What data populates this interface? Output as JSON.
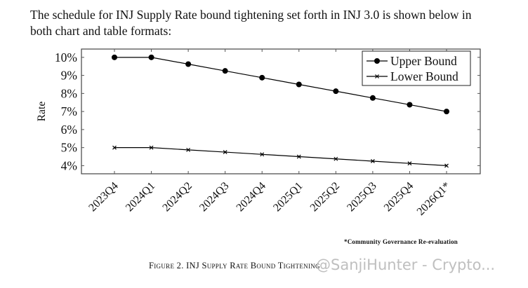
{
  "intro_text": "The schedule for INJ Supply Rate bound tightening set forth in INJ 3.0 is shown below in both chart and table formats:",
  "footnote": "*Community Governance Re-evaluation",
  "caption": "Figure 2. INJ Supply Rate Bound Tightening",
  "watermark": "@SanjiHunter - Crypto...",
  "chart_data": {
    "type": "line",
    "title": "",
    "xlabel": "",
    "ylabel": "Rate",
    "categories": [
      "2023Q4",
      "2024Q1",
      "2024Q2",
      "2024Q3",
      "2024Q4",
      "2025Q1",
      "2025Q2",
      "2025Q3",
      "2025Q4",
      "2026Q1*"
    ],
    "series": [
      {
        "name": "Upper Bound",
        "marker": "circle",
        "values": [
          10,
          10,
          9.625,
          9.25,
          8.875,
          8.5,
          8.125,
          7.75,
          7.375,
          7.0
        ]
      },
      {
        "name": "Lower Bound",
        "marker": "x",
        "values": [
          5,
          5,
          4.875,
          4.75,
          4.625,
          4.5,
          4.375,
          4.25,
          4.125,
          4.0
        ]
      }
    ],
    "yticks": [
      4,
      5,
      6,
      7,
      8,
      9,
      10
    ],
    "ytick_labels": [
      "4%",
      "5%",
      "6%",
      "7%",
      "8%",
      "9%",
      "10%"
    ],
    "ylim": [
      3.55,
      10.46
    ],
    "grid": false,
    "legend_position": "top-right",
    "line_color": "#000000"
  }
}
